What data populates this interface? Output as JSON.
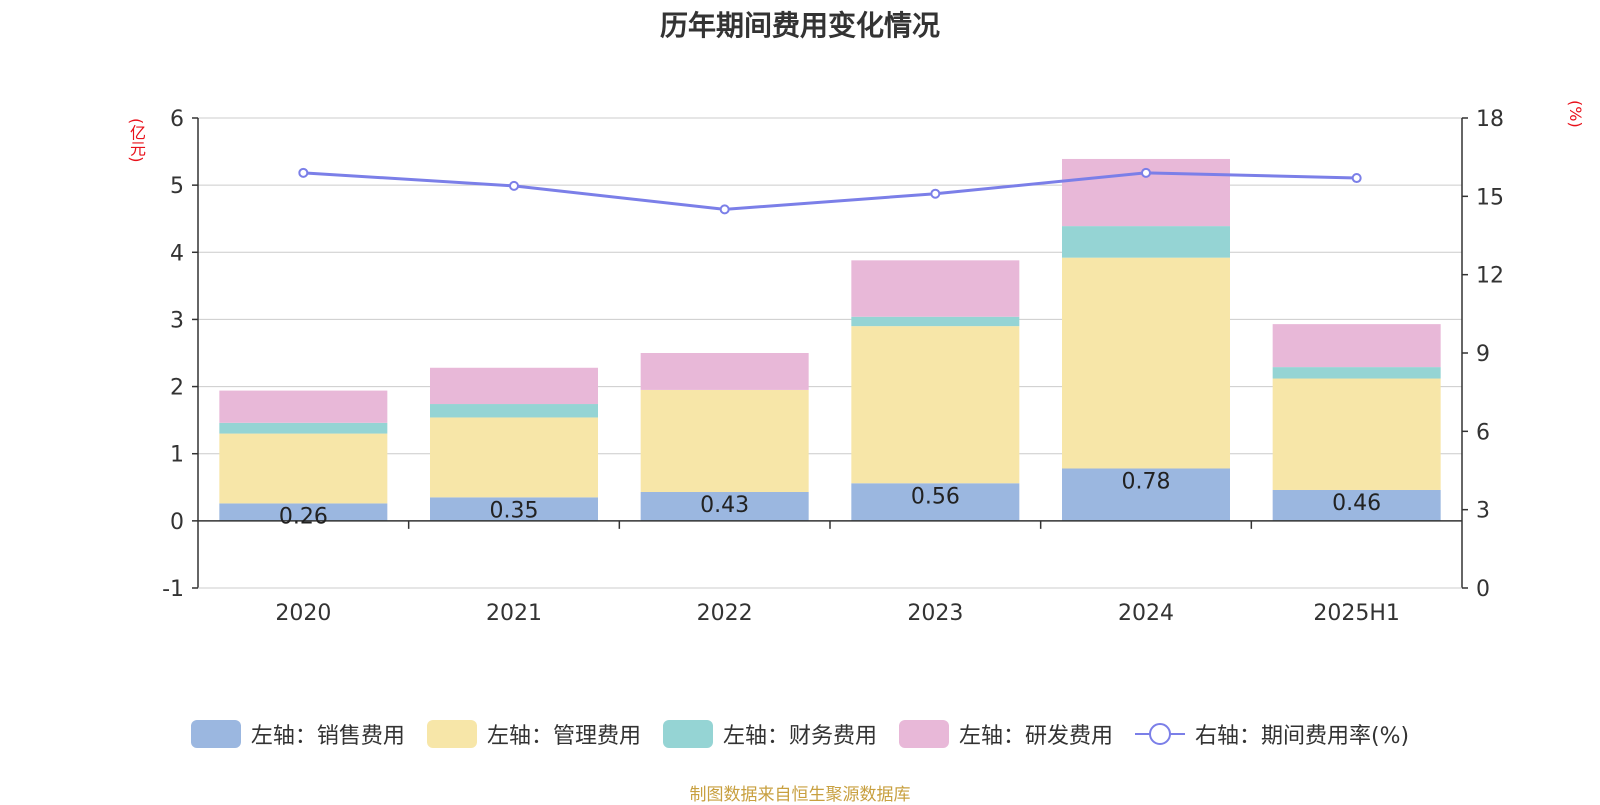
{
  "chart_data": {
    "type": "bar",
    "title": "历年期间费用变化情况",
    "categories": [
      "2020",
      "2021",
      "2022",
      "2023",
      "2024",
      "2025H1"
    ],
    "left_axis": {
      "unit": "(亿元)",
      "ylim": [
        -1,
        6
      ],
      "ticks": [
        "-1",
        "0",
        "1",
        "2",
        "3",
        "4",
        "5",
        "6"
      ]
    },
    "right_axis": {
      "unit": "(%)",
      "ylim": [
        0,
        18
      ],
      "ticks": [
        "0",
        "3",
        "6",
        "9",
        "12",
        "15",
        "18"
      ]
    },
    "series": [
      {
        "name": "左轴：销售费用",
        "axis": "left",
        "stack": true,
        "color": "#9bb7e0",
        "values": [
          0.26,
          0.35,
          0.43,
          0.56,
          0.78,
          0.46
        ],
        "labels": [
          "0.26",
          "0.35",
          "0.43",
          "0.56",
          "0.78",
          "0.46"
        ]
      },
      {
        "name": "左轴：管理费用",
        "axis": "left",
        "stack": true,
        "color": "#f7e6a8",
        "values": [
          1.04,
          1.19,
          1.52,
          2.34,
          3.14,
          1.66
        ]
      },
      {
        "name": "左轴：财务费用",
        "axis": "left",
        "stack": true,
        "color": "#95d4d4",
        "values": [
          0.16,
          0.2,
          0.0,
          0.14,
          0.47,
          0.17
        ]
      },
      {
        "name": "左轴：研发费用",
        "axis": "left",
        "stack": true,
        "color": "#e8b8d8",
        "values": [
          0.48,
          0.54,
          0.55,
          0.84,
          1.0,
          0.64
        ]
      },
      {
        "name": "右轴：期间费用率(%)",
        "axis": "right",
        "type": "line",
        "color": "#7b7fe8",
        "values": [
          15.9,
          15.4,
          14.5,
          15.1,
          15.9,
          15.7
        ]
      }
    ],
    "grid": true,
    "legend_position": "bottom"
  },
  "source": "制图数据来自恒生聚源数据库"
}
